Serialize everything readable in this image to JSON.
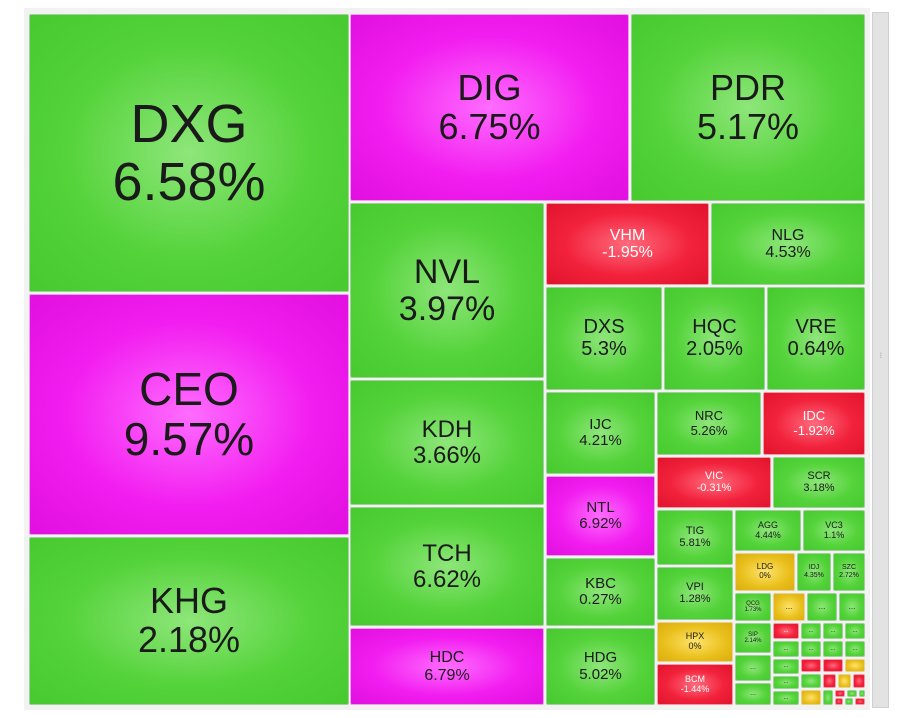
{
  "treemap": {
    "tiles": [
      {
        "symbol": "DXG",
        "change": "6.58%",
        "color": "green"
      },
      {
        "symbol": "CEO",
        "change": "9.57%",
        "color": "pink"
      },
      {
        "symbol": "KHG",
        "change": "2.18%",
        "color": "green"
      },
      {
        "symbol": "DIG",
        "change": "6.75%",
        "color": "pink"
      },
      {
        "symbol": "PDR",
        "change": "5.17%",
        "color": "green"
      },
      {
        "symbol": "NVL",
        "change": "3.97%",
        "color": "green"
      },
      {
        "symbol": "KDH",
        "change": "3.66%",
        "color": "green"
      },
      {
        "symbol": "TCH",
        "change": "6.62%",
        "color": "green"
      },
      {
        "symbol": "HDC",
        "change": "6.79%",
        "color": "pink"
      },
      {
        "symbol": "VHM",
        "change": "-1.95%",
        "color": "red"
      },
      {
        "symbol": "NLG",
        "change": "4.53%",
        "color": "green"
      },
      {
        "symbol": "DXS",
        "change": "5.3%",
        "color": "green"
      },
      {
        "symbol": "HQC",
        "change": "2.05%",
        "color": "green"
      },
      {
        "symbol": "VRE",
        "change": "0.64%",
        "color": "green"
      },
      {
        "symbol": "IJC",
        "change": "4.21%",
        "color": "green"
      },
      {
        "symbol": "NRC",
        "change": "5.26%",
        "color": "green"
      },
      {
        "symbol": "IDC",
        "change": "-1.92%",
        "color": "red"
      },
      {
        "symbol": "NTL",
        "change": "6.92%",
        "color": "pink"
      },
      {
        "symbol": "VIC",
        "change": "-0.31%",
        "color": "red"
      },
      {
        "symbol": "SCR",
        "change": "3.18%",
        "color": "green"
      },
      {
        "symbol": "KBC",
        "change": "0.27%",
        "color": "green"
      },
      {
        "symbol": "TIG",
        "change": "5.81%",
        "color": "green"
      },
      {
        "symbol": "AGG",
        "change": "4.44%",
        "color": "green"
      },
      {
        "symbol": "VC3",
        "change": "1.1%",
        "color": "green"
      },
      {
        "symbol": "HDG",
        "change": "5.02%",
        "color": "green"
      },
      {
        "symbol": "VPI",
        "change": "1.28%",
        "color": "green"
      },
      {
        "symbol": "LDG",
        "change": "0%",
        "color": "yellow"
      },
      {
        "symbol": "IDJ",
        "change": "4.35%",
        "color": "green"
      },
      {
        "symbol": "SZC",
        "change": "2.72%",
        "color": "green"
      },
      {
        "symbol": "HPX",
        "change": "0%",
        "color": "yellow"
      },
      {
        "symbol": "QCG",
        "change": "1.73%",
        "color": "green"
      },
      {
        "symbol": "SIP",
        "change": "2.14%",
        "color": "green"
      },
      {
        "symbol": "BCM",
        "change": "-1.44%",
        "color": "red"
      }
    ],
    "more_label": "..."
  },
  "colors": {
    "up": "#47c92f",
    "ceiling": "#e10fe0",
    "down": "#e0132d",
    "reference": "#d9ad0f"
  }
}
